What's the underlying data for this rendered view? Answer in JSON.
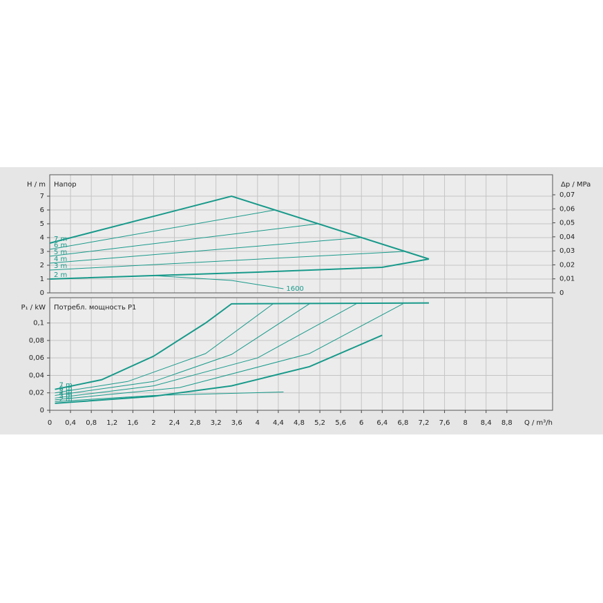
{
  "chart_data": [
    {
      "type": "line",
      "title": "Напор",
      "y_label": "H / m",
      "y2_label": "Δp / MPa",
      "xlim": [
        0,
        9.68
      ],
      "ylim": [
        0,
        8.55
      ],
      "yticks": [
        0,
        1,
        2,
        3,
        4,
        5,
        6,
        7
      ],
      "y2lim": [
        0,
        0.0843
      ],
      "y2ticks": [
        0,
        {
          "value": 0.01,
          "label": "0,01"
        },
        {
          "value": 0.02,
          "label": "0,02"
        },
        {
          "value": 0.03,
          "label": "0,03"
        },
        {
          "value": 0.04,
          "label": "0,04"
        },
        {
          "value": 0.05,
          "label": "0,05"
        },
        {
          "value": 0.06,
          "label": "0,06"
        },
        {
          "value": 0.07,
          "label": "0,07"
        }
      ],
      "grid": true,
      "color": "#17998a",
      "series": [
        {
          "name": "7 m",
          "label_position": "start",
          "width": 2,
          "x": [
            0,
            3.5,
            7.3
          ],
          "values": [
            3.6,
            7.0,
            2.45
          ]
        },
        {
          "name": "6 m",
          "label_position": "start",
          "width": 1,
          "x": [
            0,
            4.34
          ],
          "values": [
            3.15,
            6.0
          ]
        },
        {
          "name": "5 m",
          "label_position": "start",
          "width": 1,
          "x": [
            0,
            5.17
          ],
          "values": [
            2.65,
            5.0
          ]
        },
        {
          "name": "4 m",
          "label_position": "start",
          "width": 1,
          "x": [
            0,
            6.0
          ],
          "values": [
            2.15,
            4.0
          ]
        },
        {
          "name": "3 m",
          "label_position": "start",
          "width": 1,
          "x": [
            0,
            6.84
          ],
          "values": [
            1.65,
            3.0
          ]
        },
        {
          "name": "2 m",
          "label_position": "start",
          "width": 2,
          "x": [
            0,
            4,
            6.4,
            7.3
          ],
          "values": [
            1.0,
            1.5,
            1.85,
            2.45
          ]
        },
        {
          "name": "1600",
          "label_position": "end",
          "width": 1,
          "x": [
            0,
            2,
            3.5,
            4.5
          ],
          "values": [
            1.0,
            1.25,
            0.9,
            0.3
          ]
        }
      ]
    },
    {
      "type": "line",
      "title": "Потребл. мощность P1",
      "y_label": "P₁ / kW",
      "x_label": "Q / m³/h",
      "xlim": [
        0,
        9.68
      ],
      "ylim": [
        0,
        0.129
      ],
      "yticks": [
        0,
        {
          "value": 0.02,
          "label": "0,02"
        },
        {
          "value": 0.04,
          "label": "0,04"
        },
        {
          "value": 0.06,
          "label": "0,06"
        },
        {
          "value": 0.08,
          "label": "0,08"
        },
        {
          "value": 0.1,
          "label": "0,1"
        }
      ],
      "xticks": [
        0,
        {
          "value": 0.4,
          "label": "0,4"
        },
        {
          "value": 0.8,
          "label": "0,8"
        },
        {
          "value": 1.2,
          "label": "1,2"
        },
        {
          "value": 1.6,
          "label": "1,6"
        },
        2,
        {
          "value": 2.4,
          "label": "2,4"
        },
        {
          "value": 2.8,
          "label": "2,8"
        },
        {
          "value": 3.2,
          "label": "3,2"
        },
        {
          "value": 3.6,
          "label": "3,6"
        },
        4,
        {
          "value": 4.4,
          "label": "4,4"
        },
        {
          "value": 4.8,
          "label": "4,8"
        },
        {
          "value": 5.2,
          "label": "5,2"
        },
        {
          "value": 5.6,
          "label": "5,6"
        },
        6,
        {
          "value": 6.4,
          "label": "6,4"
        },
        {
          "value": 6.8,
          "label": "6,8"
        },
        {
          "value": 7.2,
          "label": "7,2"
        },
        {
          "value": 7.6,
          "label": "7,6"
        },
        8,
        {
          "value": 8.4,
          "label": "8,4"
        },
        {
          "value": 8.8,
          "label": "8,8"
        }
      ],
      "grid": true,
      "color": "#17998a",
      "series": [
        {
          "name": "7 m",
          "label_position": "start",
          "width": 2,
          "x": [
            0.1,
            1,
            2,
            3,
            3.5,
            7.3
          ],
          "values": [
            0.024,
            0.035,
            0.062,
            0.1,
            0.122,
            0.123
          ]
        },
        {
          "name": "6 m",
          "label_position": "start",
          "width": 1,
          "x": [
            0.1,
            1.5,
            3,
            4.3
          ],
          "values": [
            0.02,
            0.033,
            0.065,
            0.122
          ]
        },
        {
          "name": "5 m",
          "label_position": "start",
          "width": 1,
          "x": [
            0.1,
            2,
            3.5,
            5.0
          ],
          "values": [
            0.017,
            0.033,
            0.064,
            0.122
          ]
        },
        {
          "name": "4 m",
          "label_position": "start",
          "width": 1,
          "x": [
            0.1,
            2,
            4,
            5.9
          ],
          "values": [
            0.014,
            0.028,
            0.06,
            0.122
          ]
        },
        {
          "name": "3 m",
          "label_position": "start",
          "width": 1,
          "x": [
            0.1,
            2.5,
            5,
            6.8
          ],
          "values": [
            0.012,
            0.026,
            0.065,
            0.122
          ]
        },
        {
          "name": "2 m",
          "label_position": "start",
          "width": 2,
          "x": [
            0.1,
            2,
            3.5,
            5,
            6.4
          ],
          "values": [
            0.008,
            0.016,
            0.028,
            0.05,
            0.086
          ]
        },
        {
          "width": 1,
          "x": [
            0.1,
            2,
            4.5
          ],
          "values": [
            0.01,
            0.017,
            0.021
          ]
        }
      ]
    }
  ]
}
